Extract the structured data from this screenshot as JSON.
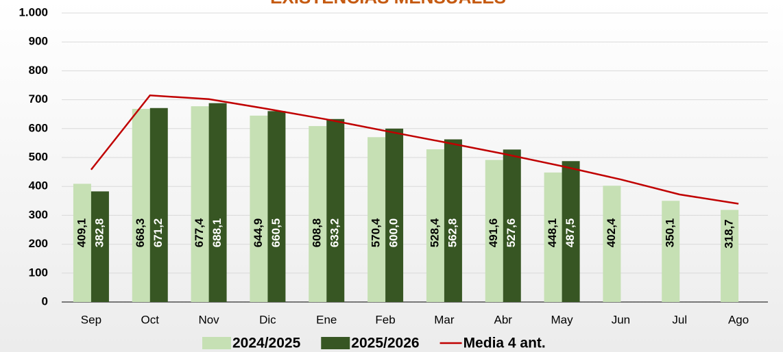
{
  "chart_data": {
    "type": "bar",
    "title": "EXISTENCIAS MENSUALES",
    "categories": [
      "Sep",
      "Oct",
      "Nov",
      "Dic",
      "Ene",
      "Feb",
      "Mar",
      "Abr",
      "May",
      "Jun",
      "Jul",
      "Ago"
    ],
    "series": [
      {
        "name": "2024/2025",
        "color": "#c6e0b4",
        "values": [
          409.1,
          668.3,
          677.4,
          644.9,
          608.8,
          570.4,
          528.4,
          491.6,
          448.1,
          402.4,
          350.1,
          318.7
        ],
        "value_labels": [
          "409,1",
          "668,3",
          "677,4",
          "644,9",
          "608,8",
          "570,4",
          "528,4",
          "491,6",
          "448,1",
          "402,4",
          "350,1",
          "318,7"
        ]
      },
      {
        "name": "2025/2026",
        "color": "#375623",
        "values": [
          382.8,
          671.2,
          688.1,
          660.5,
          633.2,
          600.0,
          562.8,
          527.6,
          487.5,
          null,
          null,
          null
        ],
        "value_labels": [
          "382,8",
          "671,2",
          "688,1",
          "660,5",
          "633,2",
          "600,0",
          "562,8",
          "527,6",
          "487,5",
          null,
          null,
          null
        ]
      },
      {
        "name": "Media 4 ant.",
        "color": "#c00000",
        "type": "line",
        "values": [
          458,
          715,
          702,
          668,
          632,
          592,
          553,
          513,
          470,
          424,
          372,
          340
        ]
      }
    ],
    "ylim": [
      0,
      1000
    ],
    "yticks": [
      0,
      100,
      200,
      300,
      400,
      500,
      600,
      700,
      800,
      900,
      {
        "value": 1000,
        "label": "1.000"
      }
    ],
    "grid": true
  }
}
